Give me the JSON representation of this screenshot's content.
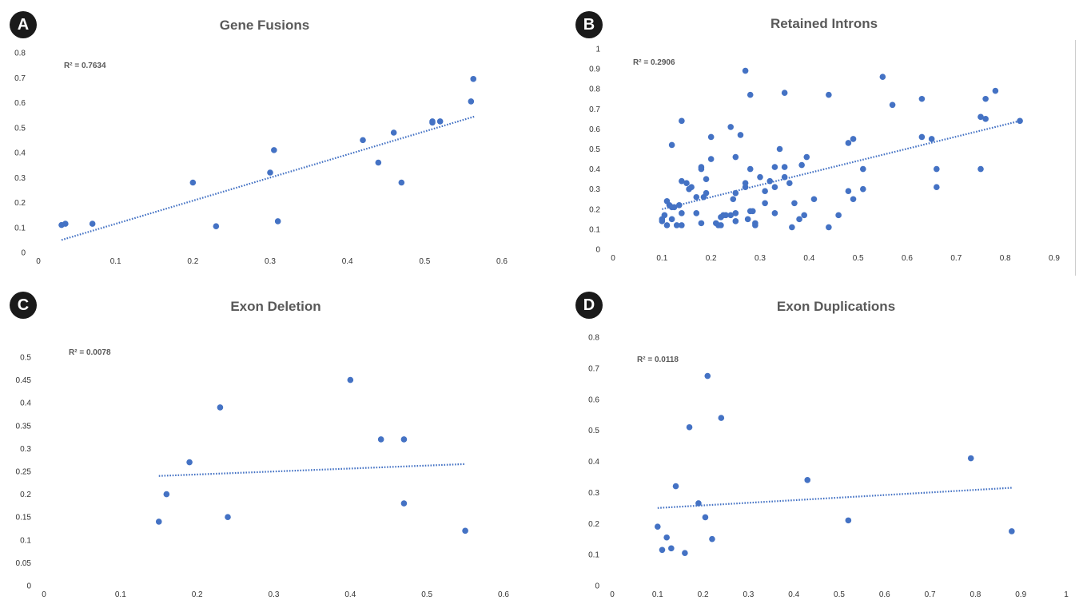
{
  "colors": {
    "point": "#4472c4",
    "trend": "#4472c4",
    "badge_bg": "#1a1a1a",
    "title": "#595959"
  },
  "chart_data": [
    {
      "panel": "A",
      "type": "scatter",
      "title": "Gene Fusions",
      "r2_label": "R² = 0.7634",
      "xlim": [
        0,
        0.6
      ],
      "ylim": [
        0,
        0.8
      ],
      "xticks": [
        "0",
        "0.1",
        "0.2",
        "0.3",
        "0.4",
        "0.5",
        "0.6"
      ],
      "yticks": [
        "0",
        "0.1",
        "0.2",
        "0.3",
        "0.4",
        "0.5",
        "0.6",
        "0.7",
        "0.8"
      ],
      "grid": false,
      "trendline": {
        "style": "dotted",
        "x": [
          0.03,
          0.565
        ],
        "y": [
          0.05,
          0.545
        ]
      },
      "points": [
        [
          0.03,
          0.11
        ],
        [
          0.035,
          0.115
        ],
        [
          0.07,
          0.115
        ],
        [
          0.2,
          0.28
        ],
        [
          0.23,
          0.105
        ],
        [
          0.3,
          0.32
        ],
        [
          0.305,
          0.41
        ],
        [
          0.31,
          0.125
        ],
        [
          0.42,
          0.45
        ],
        [
          0.44,
          0.36
        ],
        [
          0.46,
          0.48
        ],
        [
          0.47,
          0.28
        ],
        [
          0.51,
          0.52
        ],
        [
          0.51,
          0.525
        ],
        [
          0.52,
          0.525
        ],
        [
          0.56,
          0.605
        ],
        [
          0.563,
          0.695
        ]
      ]
    },
    {
      "panel": "B",
      "type": "scatter",
      "title": "Retained Introns",
      "r2_label": "R² = 0.2906",
      "xlim": [
        0,
        0.9
      ],
      "ylim": [
        0,
        1
      ],
      "xticks": [
        "0",
        "0.1",
        "0.2",
        "0.3",
        "0.4",
        "0.5",
        "0.6",
        "0.7",
        "0.8",
        "0.9"
      ],
      "yticks": [
        "0",
        "0.1",
        "0.2",
        "0.3",
        "0.4",
        "0.5",
        "0.6",
        "0.7",
        "0.8",
        "0.9",
        "1"
      ],
      "grid": false,
      "trendline": {
        "style": "dotted",
        "x": [
          0.1,
          0.83
        ],
        "y": [
          0.2,
          0.64
        ]
      },
      "points": [
        [
          0.1,
          0.14
        ],
        [
          0.1,
          0.15
        ],
        [
          0.105,
          0.17
        ],
        [
          0.11,
          0.24
        ],
        [
          0.11,
          0.12
        ],
        [
          0.115,
          0.22
        ],
        [
          0.12,
          0.52
        ],
        [
          0.12,
          0.21
        ],
        [
          0.12,
          0.15
        ],
        [
          0.125,
          0.21
        ],
        [
          0.13,
          0.12
        ],
        [
          0.135,
          0.22
        ],
        [
          0.14,
          0.18
        ],
        [
          0.14,
          0.12
        ],
        [
          0.14,
          0.34
        ],
        [
          0.14,
          0.64
        ],
        [
          0.15,
          0.33
        ],
        [
          0.155,
          0.3
        ],
        [
          0.16,
          0.31
        ],
        [
          0.17,
          0.26
        ],
        [
          0.17,
          0.18
        ],
        [
          0.18,
          0.4
        ],
        [
          0.18,
          0.41
        ],
        [
          0.18,
          0.13
        ],
        [
          0.185,
          0.26
        ],
        [
          0.19,
          0.28
        ],
        [
          0.19,
          0.35
        ],
        [
          0.2,
          0.45
        ],
        [
          0.2,
          0.56
        ],
        [
          0.21,
          0.13
        ],
        [
          0.215,
          0.12
        ],
        [
          0.22,
          0.16
        ],
        [
          0.22,
          0.12
        ],
        [
          0.225,
          0.17
        ],
        [
          0.23,
          0.17
        ],
        [
          0.24,
          0.17
        ],
        [
          0.24,
          0.61
        ],
        [
          0.245,
          0.25
        ],
        [
          0.25,
          0.46
        ],
        [
          0.25,
          0.28
        ],
        [
          0.25,
          0.18
        ],
        [
          0.25,
          0.14
        ],
        [
          0.26,
          0.57
        ],
        [
          0.27,
          0.89
        ],
        [
          0.27,
          0.33
        ],
        [
          0.27,
          0.31
        ],
        [
          0.275,
          0.15
        ],
        [
          0.28,
          0.77
        ],
        [
          0.28,
          0.4
        ],
        [
          0.28,
          0.19
        ],
        [
          0.285,
          0.19
        ],
        [
          0.29,
          0.13
        ],
        [
          0.29,
          0.12
        ],
        [
          0.3,
          0.36
        ],
        [
          0.31,
          0.29
        ],
        [
          0.31,
          0.23
        ],
        [
          0.32,
          0.34
        ],
        [
          0.33,
          0.41
        ],
        [
          0.33,
          0.18
        ],
        [
          0.33,
          0.31
        ],
        [
          0.34,
          0.5
        ],
        [
          0.35,
          0.78
        ],
        [
          0.35,
          0.41
        ],
        [
          0.35,
          0.36
        ],
        [
          0.36,
          0.33
        ],
        [
          0.365,
          0.11
        ],
        [
          0.37,
          0.23
        ],
        [
          0.38,
          0.15
        ],
        [
          0.385,
          0.42
        ],
        [
          0.39,
          0.17
        ],
        [
          0.395,
          0.46
        ],
        [
          0.41,
          0.25
        ],
        [
          0.44,
          0.77
        ],
        [
          0.44,
          0.11
        ],
        [
          0.46,
          0.17
        ],
        [
          0.48,
          0.53
        ],
        [
          0.48,
          0.29
        ],
        [
          0.49,
          0.55
        ],
        [
          0.49,
          0.25
        ],
        [
          0.51,
          0.4
        ],
        [
          0.51,
          0.3
        ],
        [
          0.55,
          0.86
        ],
        [
          0.57,
          0.72
        ],
        [
          0.63,
          0.75
        ],
        [
          0.63,
          0.56
        ],
        [
          0.65,
          0.55
        ],
        [
          0.66,
          0.4
        ],
        [
          0.66,
          0.31
        ],
        [
          0.75,
          0.66
        ],
        [
          0.75,
          0.4
        ],
        [
          0.76,
          0.75
        ],
        [
          0.76,
          0.65
        ],
        [
          0.78,
          0.79
        ],
        [
          0.83,
          0.64
        ]
      ]
    },
    {
      "panel": "C",
      "type": "scatter",
      "title": "Exon Deletion",
      "r2_label": "R² = 0.0078",
      "xlim": [
        0,
        0.6
      ],
      "ylim": [
        0,
        0.5
      ],
      "xticks": [
        "0",
        "0.1",
        "0.2",
        "0.3",
        "0.4",
        "0.5",
        "0.6"
      ],
      "yticks": [
        "0",
        "0.05",
        "0.1",
        "0.15",
        "0.2",
        "0.25",
        "0.3",
        "0.35",
        "0.4",
        "0.45",
        "0.5"
      ],
      "grid": false,
      "trendline": {
        "style": "dotted",
        "x": [
          0.15,
          0.55
        ],
        "y": [
          0.24,
          0.266
        ]
      },
      "points": [
        [
          0.15,
          0.14
        ],
        [
          0.16,
          0.2
        ],
        [
          0.19,
          0.27
        ],
        [
          0.23,
          0.39
        ],
        [
          0.24,
          0.15
        ],
        [
          0.4,
          0.45
        ],
        [
          0.44,
          0.32
        ],
        [
          0.47,
          0.32
        ],
        [
          0.47,
          0.18
        ],
        [
          0.55,
          0.12
        ]
      ]
    },
    {
      "panel": "D",
      "type": "scatter",
      "title": "Exon Duplications",
      "r2_label": "R² = 0.0118",
      "xlim": [
        0,
        1
      ],
      "ylim": [
        0,
        0.8
      ],
      "xticks": [
        "0",
        "0.1",
        "0.2",
        "0.3",
        "0.4",
        "0.5",
        "0.6",
        "0.7",
        "0.8",
        "0.9",
        "1"
      ],
      "yticks": [
        "0",
        "0.1",
        "0.2",
        "0.3",
        "0.4",
        "0.5",
        "0.6",
        "0.7",
        "0.8"
      ],
      "grid": false,
      "trendline": {
        "style": "dotted",
        "x": [
          0.1,
          0.88
        ],
        "y": [
          0.25,
          0.315
        ]
      },
      "points": [
        [
          0.1,
          0.19
        ],
        [
          0.11,
          0.115
        ],
        [
          0.12,
          0.155
        ],
        [
          0.13,
          0.12
        ],
        [
          0.14,
          0.32
        ],
        [
          0.16,
          0.105
        ],
        [
          0.17,
          0.51
        ],
        [
          0.19,
          0.265
        ],
        [
          0.205,
          0.22
        ],
        [
          0.21,
          0.675
        ],
        [
          0.22,
          0.15
        ],
        [
          0.24,
          0.54
        ],
        [
          0.43,
          0.34
        ],
        [
          0.52,
          0.21
        ],
        [
          0.79,
          0.41
        ],
        [
          0.88,
          0.175
        ]
      ]
    }
  ]
}
